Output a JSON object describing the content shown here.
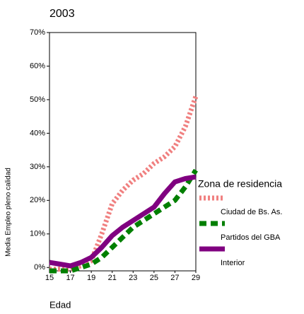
{
  "chart_data": {
    "type": "line",
    "title": "2003",
    "x_label": "Edad",
    "y_label": "Media Empleo pleno calidad",
    "legend_title": "Zona de residencia",
    "x": [
      15,
      16,
      17,
      18,
      19,
      20,
      21,
      22,
      23,
      24,
      25,
      26,
      27,
      28,
      29
    ],
    "series": [
      {
        "name": "Ciudad de Bs. As.",
        "color": "#f08080",
        "dash": "3,3",
        "values": [
          -0.5,
          -0.5,
          -0.5,
          0.5,
          2,
          10,
          19,
          23,
          26,
          28,
          31,
          33,
          36,
          42,
          51
        ]
      },
      {
        "name": "Partidos del GBA",
        "color": "#007f00",
        "dash": "10,6",
        "values": [
          -1,
          -1,
          -1,
          0,
          1,
          3,
          6,
          9,
          12,
          14,
          16,
          18,
          20,
          24,
          29
        ]
      },
      {
        "name": "Interior",
        "color": "#800080",
        "dash": "none",
        "values": [
          1.5,
          1,
          0.5,
          1.5,
          3,
          6,
          9.5,
          12,
          14,
          16,
          18,
          22,
          25.5,
          26.5,
          27
        ]
      }
    ],
    "xlim": [
      15,
      29
    ],
    "xticks": [
      15,
      17,
      19,
      21,
      23,
      25,
      27,
      29
    ],
    "ylim": [
      -1,
      70
    ],
    "yticks": [
      {
        "value": 0,
        "label": "0%"
      },
      {
        "value": 10,
        "label": "10%"
      },
      {
        "value": 20,
        "label": "20%"
      },
      {
        "value": 30,
        "label": "30%"
      },
      {
        "value": 40,
        "label": "40%"
      },
      {
        "value": 50,
        "label": "50%"
      },
      {
        "value": 60,
        "label": "60%"
      },
      {
        "value": 70,
        "label": "70%"
      }
    ]
  }
}
